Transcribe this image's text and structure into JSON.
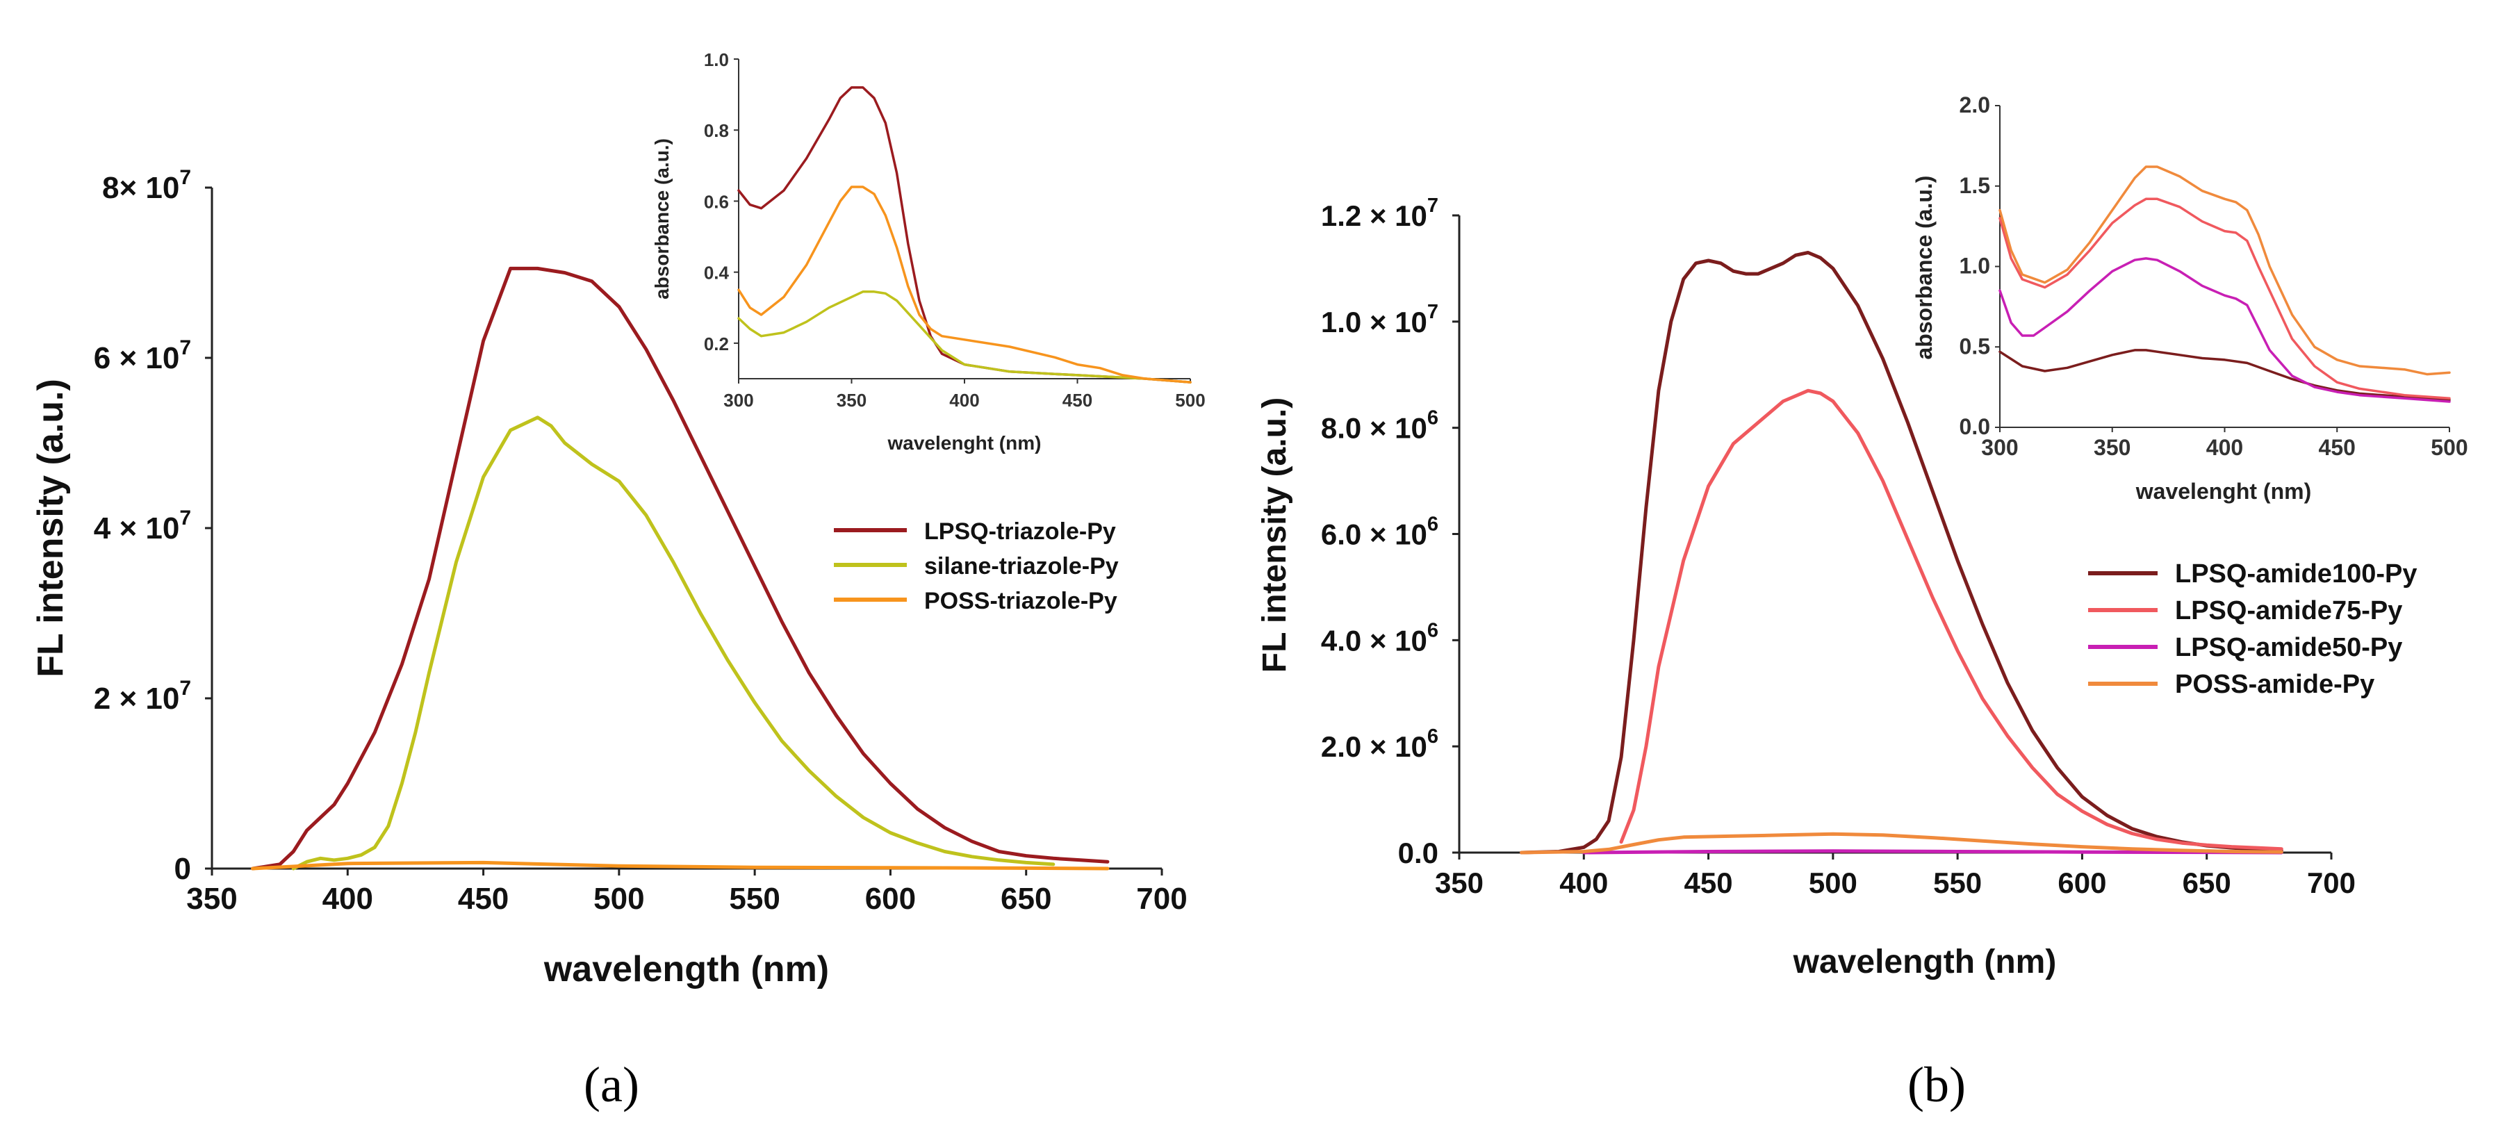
{
  "figure": {
    "panel_labels": [
      "(a)",
      "(b)"
    ]
  },
  "chart_data": [
    {
      "panel": "(a)",
      "type": "line",
      "xlabel": "wavelength (nm)",
      "ylabel": "FL intensity (a.u.)",
      "xlim": [
        350,
        700
      ],
      "ylim": [
        0,
        80000000
      ],
      "x_ticks": [
        350,
        400,
        450,
        500,
        550,
        600,
        650,
        700
      ],
      "x_tick_labels": [
        "350",
        "400",
        "450",
        "500",
        "550",
        "600",
        "650",
        "700"
      ],
      "y_ticks": [
        0,
        20000000,
        40000000,
        60000000,
        80000000
      ],
      "y_tick_labels": [
        {
          "mantissa": "0",
          "exponent": ""
        },
        {
          "mantissa": "2 × 10",
          "exponent": "7"
        },
        {
          "mantissa": "4 × 10",
          "exponent": "7"
        },
        {
          "mantissa": "6 × 10",
          "exponent": "7"
        },
        {
          "mantissa": "8× 10",
          "exponent": "7"
        }
      ],
      "legend": {
        "position": "right",
        "entries": [
          "LPSQ-triazole-Py",
          "silane-triazole-Py",
          "POSS-triazole-Py"
        ]
      },
      "series": [
        {
          "name": "LPSQ-triazole-Py",
          "color": "#9b1b1f",
          "x": [
            365,
            375,
            380,
            385,
            390,
            395,
            400,
            410,
            420,
            430,
            440,
            450,
            460,
            470,
            480,
            490,
            500,
            510,
            520,
            530,
            540,
            550,
            560,
            570,
            580,
            590,
            600,
            610,
            620,
            630,
            640,
            650,
            660,
            670,
            680
          ],
          "y": [
            0,
            500000,
            2000000,
            4500000,
            6000000,
            7500000,
            10000000,
            16000000,
            24000000,
            34000000,
            48000000,
            62000000,
            70500000,
            70500000,
            70000000,
            69000000,
            66000000,
            61000000,
            55000000,
            48500000,
            42000000,
            35500000,
            29000000,
            23000000,
            18000000,
            13500000,
            10000000,
            7000000,
            4800000,
            3200000,
            2000000,
            1500000,
            1200000,
            1000000,
            800000
          ]
        },
        {
          "name": "silane-triazole-Py",
          "color": "#bfc21c",
          "x": [
            380,
            385,
            390,
            395,
            400,
            405,
            410,
            415,
            420,
            425,
            430,
            440,
            450,
            460,
            470,
            475,
            480,
            490,
            500,
            510,
            520,
            530,
            540,
            550,
            560,
            570,
            580,
            590,
            600,
            610,
            620,
            630,
            640,
            650,
            660
          ],
          "y": [
            0,
            800000,
            1200000,
            1000000,
            1200000,
            1600000,
            2500000,
            5000000,
            10000000,
            16000000,
            23000000,
            36000000,
            46000000,
            51500000,
            53000000,
            52000000,
            50000000,
            47500000,
            45500000,
            41500000,
            36000000,
            30000000,
            24500000,
            19500000,
            15000000,
            11500000,
            8500000,
            6000000,
            4200000,
            3000000,
            2000000,
            1400000,
            1000000,
            700000,
            500000
          ]
        },
        {
          "name": "POSS-triazole-Py",
          "color": "#f7941d",
          "x": [
            365,
            400,
            450,
            500,
            550,
            600,
            650,
            680
          ],
          "y": [
            0,
            600000,
            700000,
            300000,
            150000,
            100000,
            50000,
            0
          ]
        }
      ],
      "inset": {
        "xlabel": "wavelenght (nm)",
        "ylabel": "absorbance (a.u.)",
        "xlim": [
          300,
          500
        ],
        "ylim": [
          0.1,
          1.0
        ],
        "x_ticks": [
          300,
          350,
          400,
          450,
          500
        ],
        "x_tick_labels": [
          "300",
          "350",
          "400",
          "450",
          "500"
        ],
        "y_ticks": [
          0.2,
          0.4,
          0.6,
          0.8,
          1.0
        ],
        "y_tick_labels": [
          "0.2",
          "0.4",
          "0.6",
          "0.8",
          "1.0"
        ],
        "series": [
          {
            "name": "LPSQ-triazole-Py",
            "color": "#9b1b1f",
            "x": [
              300,
              305,
              310,
              320,
              330,
              340,
              345,
              350,
              355,
              360,
              365,
              370,
              375,
              380,
              385,
              390,
              400,
              420,
              450,
              480,
              500
            ],
            "y": [
              0.63,
              0.59,
              0.58,
              0.63,
              0.72,
              0.83,
              0.89,
              0.92,
              0.92,
              0.89,
              0.82,
              0.68,
              0.48,
              0.32,
              0.22,
              0.17,
              0.14,
              0.12,
              0.11,
              0.1,
              0.09
            ]
          },
          {
            "name": "silane-triazole-Py",
            "color": "#bfc21c",
            "x": [
              300,
              305,
              310,
              320,
              330,
              340,
              350,
              355,
              360,
              365,
              370,
              380,
              390,
              400,
              420,
              450,
              480,
              500
            ],
            "y": [
              0.27,
              0.24,
              0.22,
              0.23,
              0.26,
              0.3,
              0.33,
              0.345,
              0.345,
              0.34,
              0.32,
              0.25,
              0.18,
              0.14,
              0.12,
              0.11,
              0.1,
              0.09
            ]
          },
          {
            "name": "POSS-triazole-Py",
            "color": "#f7941d",
            "x": [
              300,
              305,
              310,
              320,
              330,
              340,
              345,
              350,
              355,
              360,
              365,
              370,
              375,
              380,
              385,
              390,
              400,
              420,
              440,
              450,
              460,
              470,
              480,
              500
            ],
            "y": [
              0.35,
              0.3,
              0.28,
              0.33,
              0.42,
              0.54,
              0.6,
              0.64,
              0.64,
              0.62,
              0.56,
              0.47,
              0.36,
              0.28,
              0.24,
              0.22,
              0.21,
              0.19,
              0.16,
              0.14,
              0.13,
              0.11,
              0.1,
              0.09
            ]
          }
        ]
      }
    },
    {
      "panel": "(b)",
      "type": "line",
      "xlabel": "wavelength (nm)",
      "ylabel": "FL intensity (a.u.)",
      "xlim": [
        350,
        700
      ],
      "ylim": [
        0,
        12000000
      ],
      "x_ticks": [
        350,
        400,
        450,
        500,
        550,
        600,
        650,
        700
      ],
      "x_tick_labels": [
        "350",
        "400",
        "450",
        "500",
        "550",
        "600",
        "650",
        "700"
      ],
      "y_ticks": [
        0,
        2000000,
        4000000,
        6000000,
        8000000,
        10000000,
        12000000
      ],
      "y_tick_labels": [
        {
          "mantissa": "0.0",
          "exponent": ""
        },
        {
          "mantissa": "2.0 × 10",
          "exponent": "6"
        },
        {
          "mantissa": "4.0 × 10",
          "exponent": "6"
        },
        {
          "mantissa": "6.0 × 10",
          "exponent": "6"
        },
        {
          "mantissa": "8.0 × 10",
          "exponent": "6"
        },
        {
          "mantissa": "1.0 × 10",
          "exponent": "7"
        },
        {
          "mantissa": "1.2 × 10",
          "exponent": "7"
        }
      ],
      "legend": {
        "position": "right",
        "entries": [
          "LPSQ-amide100-Py",
          "LPSQ-amide75-Py",
          "LPSQ-amide50-Py",
          "POSS-amide-Py"
        ]
      },
      "series": [
        {
          "name": "LPSQ-amide100-Py",
          "color": "#7b1d1d",
          "x": [
            375,
            390,
            400,
            405,
            410,
            415,
            420,
            425,
            430,
            435,
            440,
            445,
            450,
            455,
            460,
            465,
            470,
            475,
            480,
            485,
            490,
            495,
            500,
            510,
            520,
            530,
            540,
            550,
            560,
            570,
            580,
            590,
            600,
            610,
            620,
            630,
            640,
            650,
            660,
            670,
            680
          ],
          "y": [
            0,
            20000,
            100000,
            250000,
            600000,
            1800000,
            4000000,
            6500000,
            8700000,
            10000000,
            10800000,
            11100000,
            11150000,
            11100000,
            10950000,
            10900000,
            10900000,
            11000000,
            11100000,
            11250000,
            11300000,
            11200000,
            11000000,
            10300000,
            9300000,
            8100000,
            6800000,
            5500000,
            4300000,
            3200000,
            2300000,
            1600000,
            1050000,
            700000,
            450000,
            300000,
            200000,
            130000,
            90000,
            60000,
            40000
          ]
        },
        {
          "name": "LPSQ-amide75-Py",
          "color": "#f0595e",
          "x": [
            415,
            420,
            425,
            430,
            440,
            450,
            460,
            470,
            480,
            490,
            495,
            500,
            510,
            520,
            530,
            540,
            550,
            560,
            570,
            580,
            590,
            600,
            610,
            620,
            630,
            640,
            650,
            660,
            670,
            680
          ],
          "y": [
            200000,
            800000,
            2000000,
            3500000,
            5500000,
            6900000,
            7700000,
            8100000,
            8500000,
            8700000,
            8650000,
            8500000,
            7900000,
            7000000,
            5900000,
            4800000,
            3800000,
            2900000,
            2200000,
            1600000,
            1100000,
            780000,
            530000,
            360000,
            250000,
            180000,
            140000,
            110000,
            90000,
            70000
          ]
        },
        {
          "name": "LPSQ-amide50-Py",
          "color": "#c81fb4",
          "x": [
            400,
            450,
            500,
            550,
            600,
            650,
            680
          ],
          "y": [
            0,
            20000,
            30000,
            20000,
            10000,
            5000,
            0
          ]
        },
        {
          "name": "POSS-amide-Py",
          "color": "#f08a3c",
          "x": [
            375,
            400,
            410,
            420,
            430,
            440,
            460,
            480,
            500,
            520,
            540,
            560,
            580,
            600,
            620,
            640,
            660,
            680
          ],
          "y": [
            0,
            20000,
            60000,
            150000,
            240000,
            290000,
            310000,
            330000,
            350000,
            330000,
            280000,
            220000,
            160000,
            110000,
            70000,
            40000,
            20000,
            10000
          ]
        }
      ],
      "inset": {
        "xlabel": "wavelenght (nm)",
        "ylabel": "absorbance (a.u.)",
        "xlim": [
          300,
          500
        ],
        "ylim": [
          0.0,
          2.0
        ],
        "x_ticks": [
          300,
          350,
          400,
          450,
          500
        ],
        "x_tick_labels": [
          "300",
          "350",
          "400",
          "450",
          "500"
        ],
        "y_ticks": [
          0.0,
          0.5,
          1.0,
          1.5,
          2.0
        ],
        "y_tick_labels": [
          "0.0",
          "0.5",
          "1.0",
          "1.5",
          "2.0"
        ],
        "series": [
          {
            "name": "LPSQ-amide100-Py",
            "color": "#7b1d1d",
            "x": [
              300,
              310,
              320,
              330,
              340,
              350,
              360,
              365,
              370,
              380,
              390,
              400,
              410,
              420,
              430,
              440,
              450,
              460,
              480,
              500
            ],
            "y": [
              0.47,
              0.38,
              0.35,
              0.37,
              0.41,
              0.45,
              0.48,
              0.48,
              0.47,
              0.45,
              0.43,
              0.42,
              0.4,
              0.35,
              0.3,
              0.26,
              0.23,
              0.21,
              0.19,
              0.17
            ]
          },
          {
            "name": "LPSQ-amide75-Py",
            "color": "#f0595e",
            "x": [
              300,
              305,
              310,
              320,
              330,
              340,
              350,
              360,
              365,
              370,
              380,
              390,
              400,
              405,
              410,
              415,
              420,
              430,
              440,
              450,
              460,
              480,
              500
            ],
            "y": [
              1.3,
              1.05,
              0.92,
              0.87,
              0.95,
              1.1,
              1.27,
              1.38,
              1.42,
              1.42,
              1.37,
              1.28,
              1.22,
              1.21,
              1.16,
              1.0,
              0.85,
              0.55,
              0.38,
              0.28,
              0.24,
              0.2,
              0.18
            ]
          },
          {
            "name": "LPSQ-amide50-Py",
            "color": "#c81fb4",
            "x": [
              300,
              305,
              310,
              315,
              320,
              330,
              340,
              350,
              360,
              365,
              370,
              380,
              390,
              400,
              405,
              410,
              415,
              420,
              430,
              440,
              450,
              460,
              480,
              500
            ],
            "y": [
              0.85,
              0.65,
              0.57,
              0.57,
              0.62,
              0.72,
              0.85,
              0.97,
              1.04,
              1.05,
              1.04,
              0.97,
              0.88,
              0.82,
              0.8,
              0.76,
              0.62,
              0.48,
              0.32,
              0.25,
              0.22,
              0.2,
              0.18,
              0.16
            ]
          },
          {
            "name": "POSS-amide-Py",
            "color": "#f08a3c",
            "x": [
              300,
              305,
              310,
              320,
              330,
              340,
              350,
              360,
              365,
              370,
              380,
              390,
              400,
              405,
              410,
              415,
              420,
              430,
              440,
              450,
              460,
              480,
              490,
              500
            ],
            "y": [
              1.35,
              1.1,
              0.95,
              0.9,
              0.98,
              1.15,
              1.35,
              1.55,
              1.62,
              1.62,
              1.56,
              1.47,
              1.42,
              1.4,
              1.35,
              1.2,
              1.0,
              0.7,
              0.5,
              0.42,
              0.38,
              0.36,
              0.33,
              0.34
            ]
          }
        ]
      }
    }
  ]
}
